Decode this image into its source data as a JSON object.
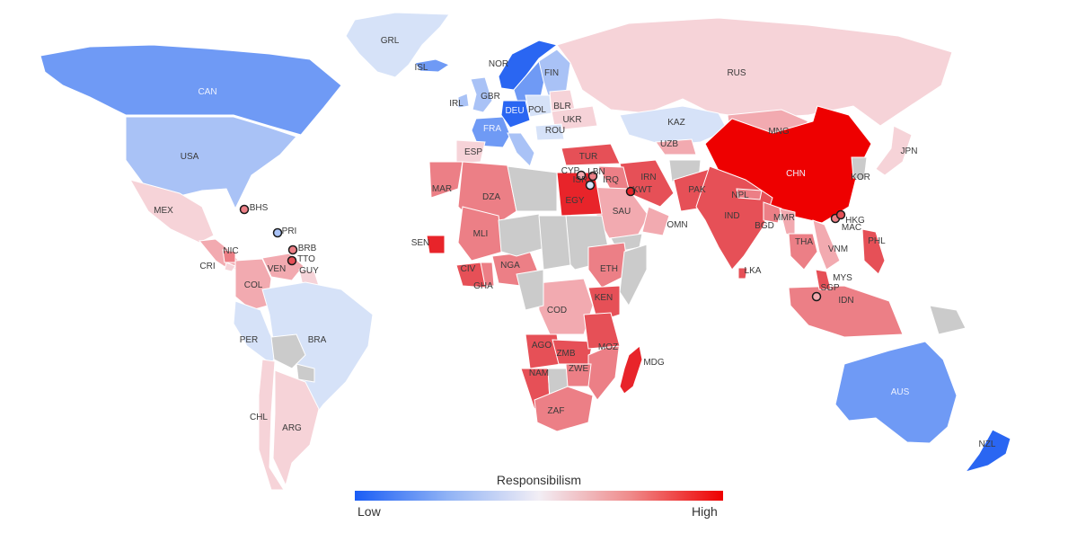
{
  "legend": {
    "title": "Responsibilism",
    "low_label": "Low",
    "high_label": "High",
    "gradient": [
      "#1a5df5",
      "#8fb2f5",
      "#f2eef5",
      "#ef8a8a",
      "#ee0000"
    ]
  },
  "colors": {
    "nodata": "#cbcbcb",
    "v1": "#2a66f2",
    "v2": "#6f9af5",
    "v3": "#a9c2f6",
    "v4": "#d6e2f8",
    "v5": "#f6d3d8",
    "v6": "#f2aab0",
    "v7": "#ec7f86",
    "v8": "#e65057",
    "v9": "#e8242a",
    "v10": "#ee0000"
  },
  "regions": [
    {
      "code": "GRL",
      "level": 4
    },
    {
      "code": "CAN",
      "level": 2
    },
    {
      "code": "USA",
      "level": 3
    },
    {
      "code": "MEX",
      "level": 5
    },
    {
      "code": "CENTAM",
      "level": 6
    },
    {
      "code": "NIC",
      "level": 7
    },
    {
      "code": "CRI",
      "level": 5
    },
    {
      "code": "VEN",
      "level": 6
    },
    {
      "code": "GUY",
      "level": 5
    },
    {
      "code": "COL",
      "level": 6
    },
    {
      "code": "PER",
      "level": 4
    },
    {
      "code": "BRA",
      "level": 4
    },
    {
      "code": "BOL",
      "level": 0
    },
    {
      "code": "PRY",
      "level": 0
    },
    {
      "code": "CHL",
      "level": 5
    },
    {
      "code": "ARG",
      "level": 5
    },
    {
      "code": "ISL",
      "level": 2
    },
    {
      "code": "NOR",
      "level": 1
    },
    {
      "code": "SWE",
      "level": 2
    },
    {
      "code": "FIN",
      "level": 3
    },
    {
      "code": "IRL",
      "level": 3
    },
    {
      "code": "GBR",
      "level": 3
    },
    {
      "code": "FRA",
      "level": 2
    },
    {
      "code": "DEU",
      "level": 1
    },
    {
      "code": "POL",
      "level": 4
    },
    {
      "code": "ESP",
      "level": 5
    },
    {
      "code": "ITA",
      "level": 3
    },
    {
      "code": "BLR",
      "level": 5
    },
    {
      "code": "UKR",
      "level": 5
    },
    {
      "code": "ROU",
      "level": 4
    },
    {
      "code": "RUS",
      "level": 5
    },
    {
      "code": "KAZ",
      "level": 4
    },
    {
      "code": "UZB",
      "level": 6
    },
    {
      "code": "MNG",
      "level": 6
    },
    {
      "code": "CHN",
      "level": 10
    },
    {
      "code": "JPN",
      "level": 5
    },
    {
      "code": "KOR",
      "level": 0
    },
    {
      "code": "TUR",
      "level": 8
    },
    {
      "code": "IRN",
      "level": 8
    },
    {
      "code": "IRQ",
      "level": 7
    },
    {
      "code": "SAU",
      "level": 6
    },
    {
      "code": "OMN",
      "level": 6
    },
    {
      "code": "YEM",
      "level": 0
    },
    {
      "code": "AFG",
      "level": 0
    },
    {
      "code": "PAK",
      "level": 8
    },
    {
      "code": "IND",
      "level": 8
    },
    {
      "code": "NPL",
      "level": 7
    },
    {
      "code": "BGD",
      "level": 7
    },
    {
      "code": "MMR",
      "level": 6
    },
    {
      "code": "THA",
      "level": 7
    },
    {
      "code": "VNM",
      "level": 6
    },
    {
      "code": "LKA",
      "level": 8
    },
    {
      "code": "IDN",
      "level": 7
    },
    {
      "code": "MYS",
      "level": 8
    },
    {
      "code": "PHL",
      "level": 8
    },
    {
      "code": "PNG",
      "level": 0
    },
    {
      "code": "AUS",
      "level": 2
    },
    {
      "code": "NZL",
      "level": 1
    },
    {
      "code": "MAR",
      "level": 7
    },
    {
      "code": "DZA",
      "level": 7
    },
    {
      "code": "LBY",
      "level": 0
    },
    {
      "code": "EGY",
      "level": 9
    },
    {
      "code": "SDN",
      "level": 0
    },
    {
      "code": "MLI",
      "level": 7
    },
    {
      "code": "SEN",
      "level": 9
    },
    {
      "code": "CIV",
      "level": 8
    },
    {
      "code": "GHA",
      "level": 7
    },
    {
      "code": "NGA",
      "level": 7
    },
    {
      "code": "NER",
      "level": 0
    },
    {
      "code": "TCD",
      "level": 0
    },
    {
      "code": "ETH",
      "level": 7
    },
    {
      "code": "SOM",
      "level": 0
    },
    {
      "code": "KEN",
      "level": 8
    },
    {
      "code": "COD",
      "level": 6
    },
    {
      "code": "CMR",
      "level": 0
    },
    {
      "code": "AGO",
      "level": 8
    },
    {
      "code": "ZMB",
      "level": 8
    },
    {
      "code": "MOZ",
      "level": 7
    },
    {
      "code": "NAM",
      "level": 8
    },
    {
      "code": "BWA",
      "level": 0
    },
    {
      "code": "ZWE",
      "level": 7
    },
    {
      "code": "ZAF",
      "level": 7
    },
    {
      "code": "MDG",
      "level": 9
    },
    {
      "code": "TZA",
      "level": 8
    }
  ],
  "labels": [
    {
      "code": "GRL",
      "text": "GRL",
      "light": false
    },
    {
      "code": "ISL",
      "text": "ISL",
      "light": false
    },
    {
      "code": "NOR",
      "text": "NOR",
      "light": false
    },
    {
      "code": "FIN",
      "text": "FIN",
      "light": false
    },
    {
      "code": "CAN",
      "text": "CAN",
      "light": true
    },
    {
      "code": "RUS",
      "text": "RUS",
      "light": false
    },
    {
      "code": "IRL",
      "text": "IRL",
      "light": false
    },
    {
      "code": "GBR",
      "text": "GBR",
      "light": false
    },
    {
      "code": "DEU",
      "text": "DEU",
      "light": true
    },
    {
      "code": "POL",
      "text": "POL",
      "light": false
    },
    {
      "code": "BLR",
      "text": "BLR",
      "light": false
    },
    {
      "code": "UKR",
      "text": "UKR",
      "light": false
    },
    {
      "code": "FRA",
      "text": "FRA",
      "light": true
    },
    {
      "code": "ROU",
      "text": "ROU",
      "light": false
    },
    {
      "code": "KAZ",
      "text": "KAZ",
      "light": false
    },
    {
      "code": "MNG",
      "text": "MNG",
      "light": false
    },
    {
      "code": "UZB",
      "text": "UZB",
      "light": false
    },
    {
      "code": "JPN",
      "text": "JPN",
      "light": false
    },
    {
      "code": "USA",
      "text": "USA",
      "light": false
    },
    {
      "code": "ESP",
      "text": "ESP",
      "light": false
    },
    {
      "code": "TUR",
      "text": "TUR",
      "light": false
    },
    {
      "code": "CYP",
      "text": "CYP",
      "light": false
    },
    {
      "code": "LBN",
      "text": "LBN",
      "light": false
    },
    {
      "code": "IRN",
      "text": "IRN",
      "light": false
    },
    {
      "code": "CHN",
      "text": "CHN",
      "light": true
    },
    {
      "code": "KOR",
      "text": "KOR",
      "light": false
    },
    {
      "code": "ISR",
      "text": "ISR",
      "light": false
    },
    {
      "code": "IRQ",
      "text": "IRQ",
      "light": false
    },
    {
      "code": "KWT",
      "text": "KWT",
      "light": false
    },
    {
      "code": "MAR",
      "text": "MAR",
      "light": false
    },
    {
      "code": "DZA",
      "text": "DZA",
      "light": false
    },
    {
      "code": "EGY",
      "text": "EGY",
      "light": false
    },
    {
      "code": "PAK",
      "text": "PAK",
      "light": false
    },
    {
      "code": "NPL",
      "text": "NPL",
      "light": false
    },
    {
      "code": "SAU",
      "text": "SAU",
      "light": false
    },
    {
      "code": "IND",
      "text": "IND",
      "light": false
    },
    {
      "code": "BHS",
      "text": "BHS",
      "light": false
    },
    {
      "code": "MEX",
      "text": "MEX",
      "light": false
    },
    {
      "code": "HKG",
      "text": "HKG",
      "light": false
    },
    {
      "code": "MMR",
      "text": "MMR",
      "light": false
    },
    {
      "code": "MAC",
      "text": "MAC",
      "light": false
    },
    {
      "code": "OMN",
      "text": "OMN",
      "light": false
    },
    {
      "code": "BGD",
      "text": "BGD",
      "light": false
    },
    {
      "code": "PRI",
      "text": "PRI",
      "light": false
    },
    {
      "code": "MLI",
      "text": "MLI",
      "light": false
    },
    {
      "code": "SEN",
      "text": "SEN",
      "light": false
    },
    {
      "code": "THA",
      "text": "THA",
      "light": false
    },
    {
      "code": "PHL",
      "text": "PHL",
      "light": false
    },
    {
      "code": "VNM",
      "text": "VNM",
      "light": false
    },
    {
      "code": "BRB",
      "text": "BRB",
      "light": false
    },
    {
      "code": "NIC",
      "text": "NIC",
      "light": false
    },
    {
      "code": "TTO",
      "text": "TTO",
      "light": false
    },
    {
      "code": "CRI",
      "text": "CRI",
      "light": false
    },
    {
      "code": "VEN",
      "text": "VEN",
      "light": false
    },
    {
      "code": "GUY",
      "text": "GUY",
      "light": false
    },
    {
      "code": "CIV",
      "text": "CIV",
      "light": false
    },
    {
      "code": "NGA",
      "text": "NGA",
      "light": false
    },
    {
      "code": "ETH",
      "text": "ETH",
      "light": false
    },
    {
      "code": "LKA",
      "text": "LKA",
      "light": false
    },
    {
      "code": "MYS",
      "text": "MYS",
      "light": false
    },
    {
      "code": "COL",
      "text": "COL",
      "light": false
    },
    {
      "code": "GHA",
      "text": "GHA",
      "light": false
    },
    {
      "code": "KEN",
      "text": "KEN",
      "light": false
    },
    {
      "code": "SGP",
      "text": "SGP",
      "light": false
    },
    {
      "code": "IDN",
      "text": "IDN",
      "light": false
    },
    {
      "code": "COD",
      "text": "COD",
      "light": false
    },
    {
      "code": "PER",
      "text": "PER",
      "light": false
    },
    {
      "code": "BRA",
      "text": "BRA",
      "light": false
    },
    {
      "code": "AGO",
      "text": "AGO",
      "light": false
    },
    {
      "code": "MOZ",
      "text": "MOZ",
      "light": false
    },
    {
      "code": "ZMB",
      "text": "ZMB",
      "light": false
    },
    {
      "code": "MDG",
      "text": "MDG",
      "light": false
    },
    {
      "code": "NAM",
      "text": "NAM",
      "light": false
    },
    {
      "code": "ZWE",
      "text": "ZWE",
      "light": false
    },
    {
      "code": "AUS",
      "text": "AUS",
      "light": true
    },
    {
      "code": "CHL",
      "text": "CHL",
      "light": false
    },
    {
      "code": "ZAF",
      "text": "ZAF",
      "light": false
    },
    {
      "code": "ARG",
      "text": "ARG",
      "light": false
    },
    {
      "code": "NZL",
      "text": "NZL",
      "light": false
    }
  ],
  "markers": [
    {
      "code": "BHS",
      "level": 7
    },
    {
      "code": "PRI",
      "level": 3
    },
    {
      "code": "BRB",
      "level": 7
    },
    {
      "code": "TTO",
      "level": 8
    },
    {
      "code": "CYP",
      "level": 6
    },
    {
      "code": "LBN",
      "level": 7
    },
    {
      "code": "ISR",
      "level": 4
    },
    {
      "code": "KWT",
      "level": 9
    },
    {
      "code": "SGP",
      "level": 6
    },
    {
      "code": "MAC",
      "level": 7
    },
    {
      "code": "HKG",
      "level": 8
    }
  ]
}
